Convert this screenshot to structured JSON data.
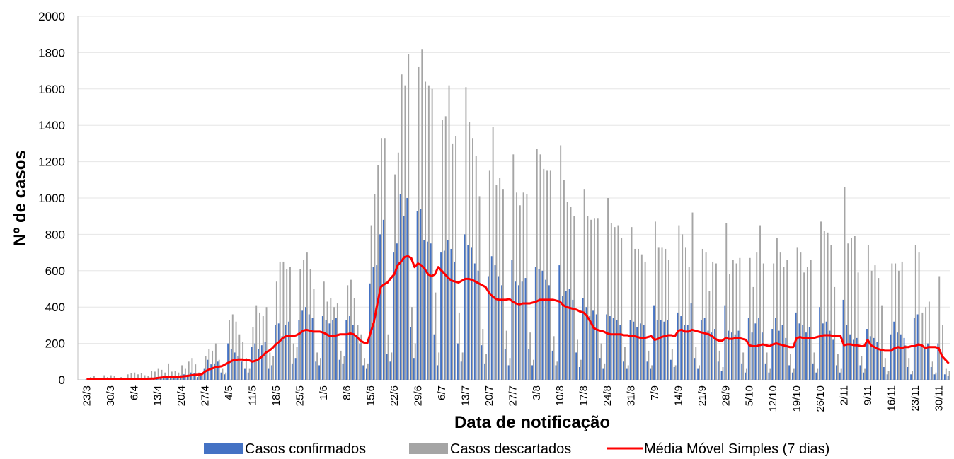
{
  "chart_data": {
    "type": "bar",
    "x_label": "Data de notificação",
    "y_label": "Nº de casos",
    "ylim": [
      0,
      2000
    ],
    "yticks": [
      0,
      200,
      400,
      600,
      800,
      1000,
      1200,
      1400,
      1600,
      1800,
      2000
    ],
    "grid": true,
    "legend": "bottom",
    "categories": [
      "23/3",
      null,
      null,
      null,
      null,
      null,
      null,
      "30/3",
      null,
      null,
      null,
      null,
      null,
      null,
      "6/4",
      null,
      null,
      null,
      null,
      null,
      null,
      "13/4",
      null,
      null,
      null,
      null,
      null,
      null,
      "20/4",
      null,
      null,
      null,
      null,
      null,
      null,
      "27/4",
      null,
      null,
      null,
      null,
      null,
      null,
      "4/5",
      null,
      null,
      null,
      null,
      null,
      null,
      "11/5",
      null,
      null,
      null,
      null,
      null,
      null,
      "18/5",
      null,
      null,
      null,
      null,
      null,
      null,
      "25/5",
      null,
      null,
      null,
      null,
      null,
      null,
      "1/6",
      null,
      null,
      null,
      null,
      null,
      null,
      "8/6",
      null,
      null,
      null,
      null,
      null,
      null,
      "15/6",
      null,
      null,
      null,
      null,
      null,
      null,
      "22/6",
      null,
      null,
      null,
      null,
      null,
      null,
      "29/6",
      null,
      null,
      null,
      null,
      null,
      null,
      "6/7",
      null,
      null,
      null,
      null,
      null,
      null,
      "13/7",
      null,
      null,
      null,
      null,
      null,
      null,
      "20/7",
      null,
      null,
      null,
      null,
      null,
      null,
      "27/7",
      null,
      null,
      null,
      null,
      null,
      null,
      "3/8",
      null,
      null,
      null,
      null,
      null,
      null,
      "10/8",
      null,
      null,
      null,
      null,
      null,
      null,
      "17/8",
      null,
      null,
      null,
      null,
      null,
      null,
      "24/8",
      null,
      null,
      null,
      null,
      null,
      null,
      "31/8",
      null,
      null,
      null,
      null,
      null,
      null,
      "7/9",
      null,
      null,
      null,
      null,
      null,
      null,
      "14/9",
      null,
      null,
      null,
      null,
      null,
      null,
      "21/9",
      null,
      null,
      null,
      null,
      null,
      null,
      "28/9",
      null,
      null,
      null,
      null,
      null,
      null,
      "5/10",
      null,
      null,
      null,
      null,
      null,
      null,
      "12/10",
      null,
      null,
      null,
      null,
      null,
      null,
      "19/10",
      null,
      null,
      null,
      null,
      null,
      null,
      "26/10",
      null,
      null,
      null,
      null,
      null,
      null,
      "2/11",
      null,
      null,
      null,
      null,
      null,
      null,
      "9/11",
      null,
      null,
      null,
      null,
      null,
      null,
      "16/11",
      null,
      null,
      null,
      null,
      null,
      null,
      "23/11",
      null,
      null,
      null,
      null,
      null,
      null,
      "30/11",
      null,
      null,
      null
    ],
    "series": [
      {
        "name": "Casos confirmados",
        "type": "bar",
        "color": "#4472c4",
        "values": [
          2,
          3,
          1,
          4,
          2,
          1,
          3,
          3,
          5,
          4,
          6,
          5,
          2,
          3,
          6,
          8,
          7,
          9,
          6,
          3,
          5,
          15,
          12,
          18,
          20,
          14,
          8,
          10,
          25,
          30,
          28,
          40,
          35,
          15,
          20,
          60,
          110,
          85,
          90,
          100,
          40,
          30,
          200,
          170,
          150,
          130,
          100,
          60,
          40,
          180,
          200,
          170,
          190,
          210,
          60,
          80,
          300,
          310,
          240,
          300,
          320,
          90,
          120,
          330,
          380,
          400,
          360,
          340,
          100,
          80,
          350,
          330,
          310,
          330,
          340,
          110,
          90,
          330,
          350,
          300,
          240,
          200,
          80,
          60,
          530,
          620,
          630,
          800,
          880,
          140,
          100,
          700,
          750,
          1020,
          900,
          1000,
          290,
          120,
          930,
          940,
          770,
          760,
          750,
          250,
          80,
          700,
          710,
          770,
          720,
          650,
          200,
          100,
          800,
          740,
          730,
          640,
          600,
          190,
          90,
          570,
          680,
          630,
          570,
          520,
          170,
          80,
          660,
          540,
          520,
          540,
          560,
          170,
          80,
          620,
          610,
          600,
          550,
          520,
          160,
          80,
          630,
          460,
          490,
          500,
          440,
          150,
          70,
          450,
          400,
          350,
          380,
          360,
          120,
          60,
          360,
          350,
          340,
          330,
          300,
          100,
          60,
          330,
          320,
          290,
          310,
          300,
          100,
          60,
          410,
          330,
          330,
          320,
          330,
          110,
          70,
          370,
          350,
          300,
          300,
          420,
          120,
          60,
          330,
          340,
          270,
          260,
          280,
          100,
          50,
          410,
          270,
          260,
          250,
          270,
          90,
          40,
          340,
          260,
          310,
          340,
          260,
          90,
          40,
          280,
          340,
          270,
          300,
          230,
          80,
          40,
          370,
          310,
          300,
          260,
          290,
          90,
          40,
          400,
          310,
          320,
          270,
          220,
          80,
          40,
          440,
          300,
          250,
          220,
          230,
          80,
          40,
          280,
          240,
          230,
          210,
          170,
          70,
          30,
          250,
          320,
          260,
          250,
          230,
          70,
          30,
          340,
          360,
          190,
          180,
          200,
          70,
          30,
          200,
          150,
          30,
          20
        ]
      },
      {
        "name": "Casos descartados",
        "type": "bar",
        "color": "#a5a5a5",
        "values": [
          10,
          15,
          20,
          5,
          5,
          25,
          15,
          25,
          20,
          10,
          15,
          5,
          30,
          35,
          40,
          30,
          35,
          25,
          20,
          50,
          45,
          60,
          55,
          40,
          90,
          45,
          50,
          40,
          80,
          60,
          100,
          120,
          85,
          40,
          30,
          130,
          170,
          160,
          200,
          110,
          60,
          40,
          330,
          360,
          320,
          250,
          210,
          120,
          60,
          290,
          410,
          370,
          350,
          400,
          150,
          130,
          540,
          650,
          650,
          610,
          620,
          200,
          180,
          610,
          660,
          700,
          610,
          500,
          150,
          120,
          540,
          430,
          450,
          400,
          420,
          160,
          130,
          520,
          550,
          450,
          300,
          250,
          120,
          90,
          850,
          1020,
          1180,
          1330,
          1330,
          250,
          150,
          1130,
          1250,
          1680,
          1620,
          1790,
          400,
          200,
          1720,
          1820,
          1640,
          1620,
          1600,
          480,
          150,
          1430,
          1450,
          1620,
          1300,
          1340,
          370,
          150,
          1610,
          1420,
          1330,
          1230,
          1010,
          280,
          140,
          1150,
          1390,
          1070,
          1110,
          1050,
          270,
          120,
          1240,
          1030,
          960,
          1030,
          1020,
          260,
          110,
          1270,
          1240,
          1160,
          1150,
          1150,
          240,
          100,
          1290,
          1100,
          980,
          950,
          900,
          220,
          110,
          1050,
          900,
          880,
          890,
          890,
          200,
          90,
          1000,
          860,
          840,
          850,
          780,
          180,
          80,
          840,
          720,
          720,
          690,
          650,
          160,
          80,
          870,
          730,
          730,
          720,
          660,
          170,
          80,
          850,
          800,
          730,
          620,
          920,
          180,
          80,
          720,
          700,
          490,
          650,
          640,
          160,
          70,
          860,
          580,
          660,
          640,
          670,
          150,
          60,
          670,
          510,
          700,
          850,
          640,
          150,
          60,
          640,
          780,
          700,
          620,
          660,
          140,
          60,
          730,
          700,
          590,
          620,
          660,
          150,
          60,
          870,
          820,
          810,
          740,
          510,
          140,
          60,
          1060,
          750,
          780,
          790,
          590,
          130,
          60,
          740,
          600,
          630,
          560,
          410,
          120,
          50,
          640,
          640,
          600,
          650,
          190,
          120,
          50,
          740,
          700,
          370,
          400,
          430,
          100,
          40,
          570,
          300,
          60,
          50
        ]
      },
      {
        "name": "Média Móvel Simples (7 dias)",
        "type": "line",
        "color": "#ff0000",
        "values": [
          2,
          2,
          2,
          2,
          2,
          2,
          2,
          3,
          3,
          3,
          4,
          4,
          4,
          4,
          5,
          5,
          6,
          6,
          6,
          7,
          7,
          10,
          12,
          14,
          15,
          16,
          16,
          16,
          18,
          20,
          22,
          25,
          27,
          28,
          30,
          45,
          55,
          62,
          68,
          72,
          75,
          85,
          95,
          105,
          110,
          112,
          112,
          110,
          108,
          100,
          105,
          115,
          130,
          150,
          160,
          175,
          195,
          210,
          230,
          240,
          240,
          240,
          245,
          255,
          270,
          275,
          270,
          265,
          265,
          265,
          260,
          250,
          240,
          240,
          245,
          250,
          250,
          250,
          255,
          250,
          235,
          215,
          205,
          200,
          260,
          320,
          420,
          510,
          525,
          535,
          560,
          580,
          630,
          650,
          675,
          680,
          670,
          620,
          640,
          630,
          610,
          580,
          570,
          580,
          620,
          600,
          580,
          560,
          545,
          540,
          535,
          545,
          555,
          555,
          550,
          540,
          530,
          520,
          510,
          480,
          460,
          445,
          440,
          440,
          440,
          445,
          430,
          420,
          415,
          420,
          420,
          420,
          425,
          430,
          440,
          440,
          440,
          440,
          440,
          435,
          430,
          410,
          400,
          395,
          390,
          385,
          375,
          370,
          350,
          320,
          285,
          275,
          270,
          265,
          255,
          250,
          250,
          250,
          250,
          245,
          245,
          240,
          240,
          235,
          230,
          230,
          235,
          240,
          220,
          225,
          235,
          240,
          245,
          245,
          240,
          270,
          275,
          265,
          265,
          275,
          270,
          265,
          260,
          255,
          250,
          240,
          225,
          215,
          215,
          230,
          225,
          225,
          230,
          230,
          225,
          220,
          190,
          185,
          185,
          190,
          195,
          190,
          185,
          195,
          200,
          195,
          190,
          185,
          180,
          180,
          230,
          235,
          230,
          230,
          230,
          230,
          235,
          240,
          245,
          245,
          245,
          240,
          240,
          240,
          190,
          195,
          195,
          190,
          190,
          185,
          185,
          220,
          190,
          180,
          170,
          165,
          160,
          160,
          160,
          175,
          180,
          175,
          180,
          180,
          185,
          185,
          195,
          190,
          175,
          180,
          180,
          180,
          175,
          130,
          110,
          90
        ]
      }
    ]
  }
}
